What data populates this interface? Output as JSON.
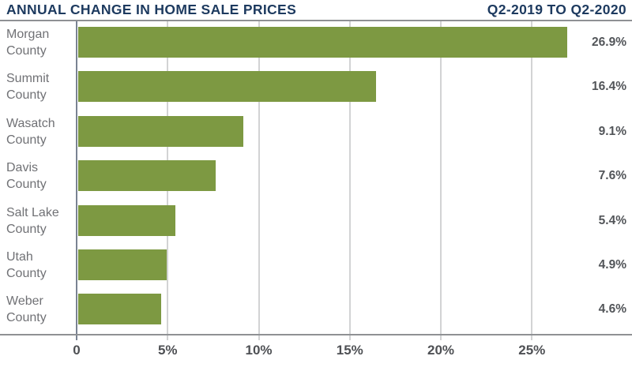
{
  "header": {
    "title": "ANNUAL CHANGE IN HOME SALE PRICES",
    "period": "Q2-2019 TO Q2-2020"
  },
  "chart_data": {
    "type": "bar",
    "orientation": "horizontal",
    "title": "ANNUAL CHANGE IN HOME SALE PRICES",
    "subtitle": "Q2-2019 TO Q2-2020",
    "categories": [
      "Morgan County",
      "Summit County",
      "Wasatch County",
      "Davis County",
      "Salt Lake County",
      "Utah County",
      "Weber County"
    ],
    "values": [
      26.9,
      16.4,
      9.1,
      7.6,
      5.4,
      4.9,
      4.6
    ],
    "value_labels": [
      "26.9%",
      "16.4%",
      "9.1%",
      "7.6%",
      "5.4%",
      "4.9%",
      "4.6%"
    ],
    "xlabel": "",
    "ylabel": "",
    "x_ticks": [
      0,
      5,
      10,
      15,
      20,
      25
    ],
    "x_tick_labels": [
      "0",
      "5%",
      "10%",
      "15%",
      "20%",
      "25%"
    ],
    "xlim": [
      0,
      30.5
    ],
    "grid": true,
    "legend": false,
    "colors": {
      "bar": "#7d9942",
      "title": "#1d3a5f",
      "category_label": "#707175",
      "value_label": "#525559",
      "tick_label": "#4e5054",
      "gridline": "#d2d3d4",
      "axis_line": "#8f9194",
      "zero_line": "#798392"
    }
  }
}
